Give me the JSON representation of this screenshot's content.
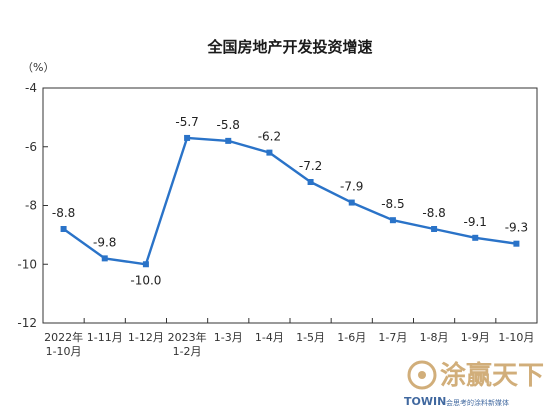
{
  "chart_data": {
    "type": "line",
    "title": "全国房地产开发投资增速",
    "ylabel": "（%）",
    "categories": [
      [
        "2022年",
        "1-10月"
      ],
      [
        "1-11月"
      ],
      [
        "1-12月"
      ],
      [
        "2023年",
        "1-2月"
      ],
      [
        "1-3月"
      ],
      [
        "1-4月"
      ],
      [
        "1-5月"
      ],
      [
        "1-6月"
      ],
      [
        "1-7月"
      ],
      [
        "1-8月"
      ],
      [
        "1-9月"
      ],
      [
        "1-10月"
      ]
    ],
    "values": [
      -8.8,
      -9.8,
      -10.0,
      -5.7,
      -5.8,
      -6.2,
      -7.2,
      -7.9,
      -8.5,
      -8.8,
      -9.1,
      -9.3
    ],
    "data_labels": [
      "-8.8",
      "-9.8",
      "-10.0",
      "-5.7",
      "-5.8",
      "-6.2",
      "-7.2",
      "-7.9",
      "-8.5",
      "-8.8",
      "-9.1",
      "-9.3"
    ],
    "ylim": [
      -12,
      -4
    ],
    "yticks": [
      "-4",
      "-6",
      "-8",
      "-10",
      "-12"
    ],
    "grid": false,
    "legend": "none",
    "line_color": "#2a73c8"
  },
  "watermark": {
    "brand_cn": "涂赢天下",
    "brand_en": "TOWIN",
    "tagline": "会思考的涂料新媒体"
  }
}
